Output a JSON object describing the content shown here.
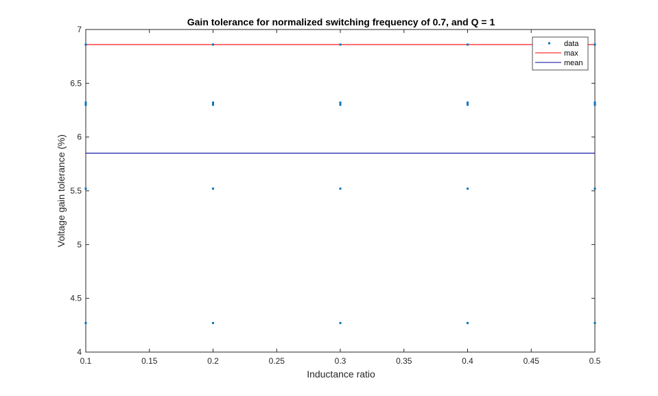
{
  "chart_data": {
    "type": "scatter",
    "title": "Gain tolerance for normalized switching frequency of 0.7, and Q = 1",
    "xlabel": "Inductance ratio",
    "ylabel": "Voltage gain tolerance (%)",
    "xlim": [
      0.1,
      0.5
    ],
    "ylim": [
      4,
      7
    ],
    "xticks": [
      0.1,
      0.15,
      0.2,
      0.25,
      0.3,
      0.35,
      0.4,
      0.45,
      0.5
    ],
    "xtick_labels": [
      "0.1",
      "0.15",
      "0.2",
      "0.25",
      "0.3",
      "0.35",
      "0.4",
      "0.45",
      "0.5"
    ],
    "yticks": [
      4,
      4.5,
      5,
      5.5,
      6,
      6.5,
      7
    ],
    "ytick_labels": [
      "4",
      "4.5",
      "5",
      "5.5",
      "6",
      "6.5",
      "7"
    ],
    "grid": false,
    "legend_position": "top-right",
    "series": [
      {
        "name": "data",
        "type": "scatter",
        "color": "#0072BD",
        "points": [
          [
            0.1,
            4.27
          ],
          [
            0.1,
            5.52
          ],
          [
            0.1,
            6.3
          ],
          [
            0.1,
            6.32
          ],
          [
            0.1,
            6.86
          ],
          [
            0.2,
            4.27
          ],
          [
            0.2,
            5.52
          ],
          [
            0.2,
            6.3
          ],
          [
            0.2,
            6.32
          ],
          [
            0.2,
            6.86
          ],
          [
            0.3,
            4.27
          ],
          [
            0.3,
            5.52
          ],
          [
            0.3,
            6.3
          ],
          [
            0.3,
            6.32
          ],
          [
            0.3,
            6.86
          ],
          [
            0.4,
            4.27
          ],
          [
            0.4,
            5.52
          ],
          [
            0.4,
            6.3
          ],
          [
            0.4,
            6.32
          ],
          [
            0.4,
            6.86
          ],
          [
            0.5,
            4.27
          ],
          [
            0.5,
            5.52
          ],
          [
            0.5,
            6.3
          ],
          [
            0.5,
            6.32
          ],
          [
            0.5,
            6.86
          ]
        ]
      },
      {
        "name": "max",
        "type": "hline",
        "color": "#FF0000",
        "y": 6.86
      },
      {
        "name": "mean",
        "type": "hline",
        "color": "#0000A0",
        "y": 5.85
      }
    ]
  }
}
